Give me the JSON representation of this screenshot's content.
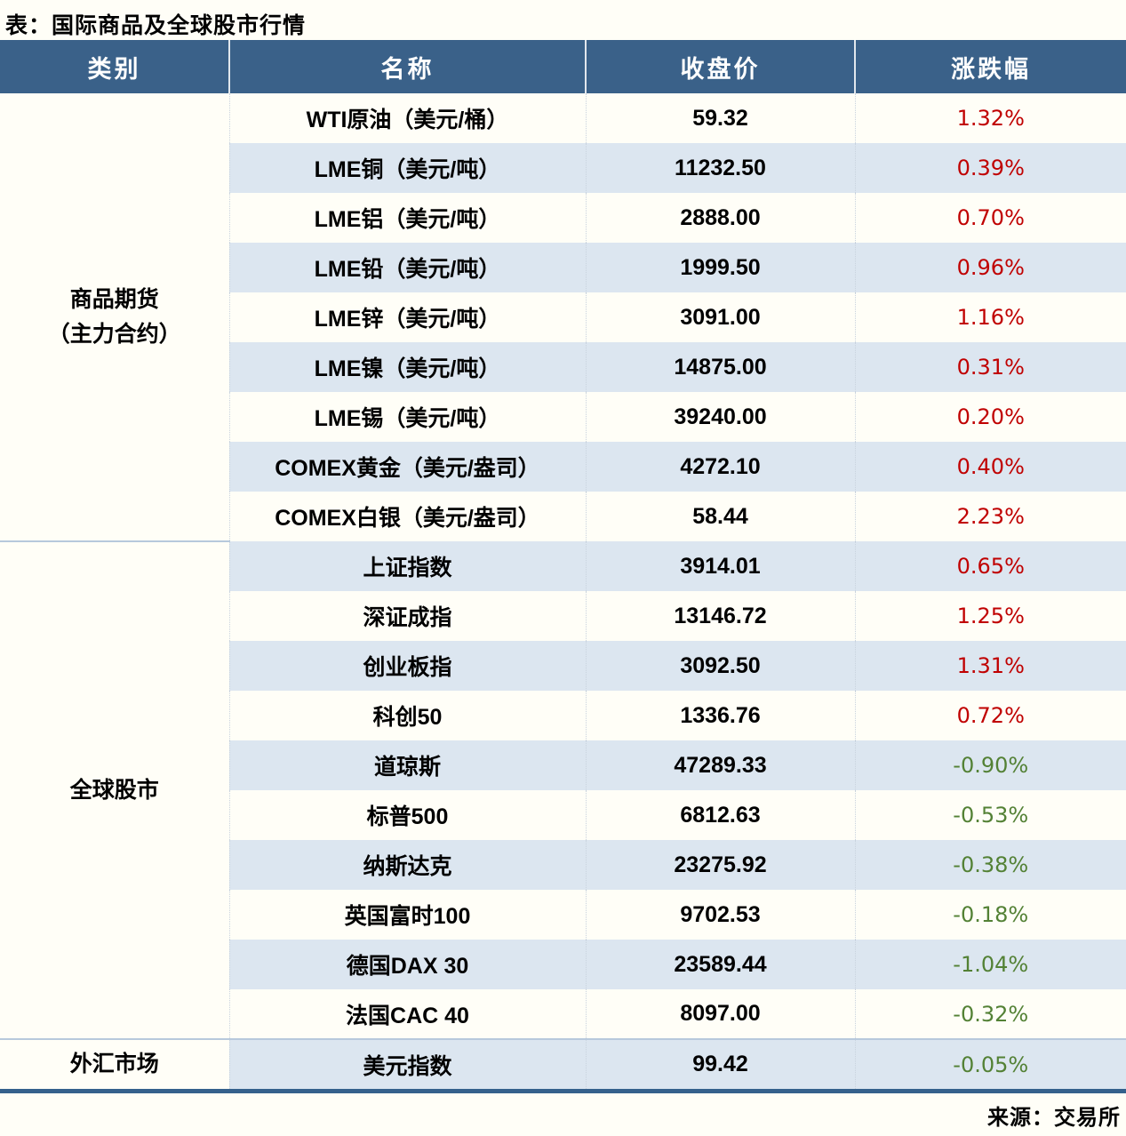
{
  "title": "表：国际商品及全球股市行情",
  "source": "来源：交易所",
  "columns": [
    "类别",
    "名称",
    "收盘价",
    "涨跌幅"
  ],
  "colors": {
    "header_bg": "#3a6189",
    "header_text": "#ffffff",
    "row_bg": "#fffef7",
    "row_alt_bg": "#dce6f0",
    "positive_change": "#c00000",
    "negative_change": "#538135",
    "group_divider": "#b7c9dc",
    "bottom_border": "#35618c"
  },
  "groups": [
    {
      "category_lines": [
        "商品期货",
        "（主力合约）"
      ],
      "rows": [
        {
          "name": "WTI原油（美元/桶）",
          "close": "59.32",
          "change": "1.32%",
          "direction": "up"
        },
        {
          "name": "LME铜（美元/吨）",
          "close": "11232.50",
          "change": "0.39%",
          "direction": "up"
        },
        {
          "name": "LME铝（美元/吨）",
          "close": "2888.00",
          "change": "0.70%",
          "direction": "up"
        },
        {
          "name": "LME铅（美元/吨）",
          "close": "1999.50",
          "change": "0.96%",
          "direction": "up"
        },
        {
          "name": "LME锌（美元/吨）",
          "close": "3091.00",
          "change": "1.16%",
          "direction": "up"
        },
        {
          "name": "LME镍（美元/吨）",
          "close": "14875.00",
          "change": "0.31%",
          "direction": "up"
        },
        {
          "name": "LME锡（美元/吨）",
          "close": "39240.00",
          "change": "0.20%",
          "direction": "up"
        },
        {
          "name": "COMEX黄金（美元/盎司）",
          "close": "4272.10",
          "change": "0.40%",
          "direction": "up"
        },
        {
          "name": "COMEX白银（美元/盎司）",
          "close": "58.44",
          "change": "2.23%",
          "direction": "up"
        }
      ]
    },
    {
      "category_lines": [
        "全球股市"
      ],
      "rows": [
        {
          "name": "上证指数",
          "close": "3914.01",
          "change": "0.65%",
          "direction": "up"
        },
        {
          "name": "深证成指",
          "close": "13146.72",
          "change": "1.25%",
          "direction": "up"
        },
        {
          "name": "创业板指",
          "close": "3092.50",
          "change": "1.31%",
          "direction": "up"
        },
        {
          "name": "科创50",
          "close": "1336.76",
          "change": "0.72%",
          "direction": "up"
        },
        {
          "name": "道琼斯",
          "close": "47289.33",
          "change": "-0.90%",
          "direction": "down"
        },
        {
          "name": "标普500",
          "close": "6812.63",
          "change": "-0.53%",
          "direction": "down"
        },
        {
          "name": "纳斯达克",
          "close": "23275.92",
          "change": "-0.38%",
          "direction": "down"
        },
        {
          "name": "英国富时100",
          "close": "9702.53",
          "change": "-0.18%",
          "direction": "down"
        },
        {
          "name": "德国DAX 30",
          "close": "23589.44",
          "change": "-1.04%",
          "direction": "down"
        },
        {
          "name": "法国CAC 40",
          "close": "8097.00",
          "change": "-0.32%",
          "direction": "down"
        }
      ]
    },
    {
      "category_lines": [
        "外汇市场"
      ],
      "rows": [
        {
          "name": "美元指数",
          "close": "99.42",
          "change": "-0.05%",
          "direction": "down"
        }
      ]
    }
  ],
  "chart_data": {
    "type": "table",
    "title": "表：国际商品及全球股市行情",
    "columns": [
      "类别",
      "名称",
      "收盘价",
      "涨跌幅"
    ],
    "rows": [
      [
        "商品期货（主力合约）",
        "WTI原油（美元/桶）",
        59.32,
        "1.32%"
      ],
      [
        "商品期货（主力合约）",
        "LME铜（美元/吨）",
        11232.5,
        "0.39%"
      ],
      [
        "商品期货（主力合约）",
        "LME铝（美元/吨）",
        2888.0,
        "0.70%"
      ],
      [
        "商品期货（主力合约）",
        "LME铅（美元/吨）",
        1999.5,
        "0.96%"
      ],
      [
        "商品期货（主力合约）",
        "LME锌（美元/吨）",
        3091.0,
        "1.16%"
      ],
      [
        "商品期货（主力合约）",
        "LME镍（美元/吨）",
        14875.0,
        "0.31%"
      ],
      [
        "商品期货（主力合约）",
        "LME锡（美元/吨）",
        39240.0,
        "0.20%"
      ],
      [
        "商品期货（主力合约）",
        "COMEX黄金（美元/盎司）",
        4272.1,
        "0.40%"
      ],
      [
        "商品期货（主力合约）",
        "COMEX白银（美元/盎司）",
        58.44,
        "2.23%"
      ],
      [
        "全球股市",
        "上证指数",
        3914.01,
        "0.65%"
      ],
      [
        "全球股市",
        "深证成指",
        13146.72,
        "1.25%"
      ],
      [
        "全球股市",
        "创业板指",
        3092.5,
        "1.31%"
      ],
      [
        "全球股市",
        "科创50",
        1336.76,
        "0.72%"
      ],
      [
        "全球股市",
        "道琼斯",
        47289.33,
        "-0.90%"
      ],
      [
        "全球股市",
        "标普500",
        6812.63,
        "-0.53%"
      ],
      [
        "全球股市",
        "纳斯达克",
        23275.92,
        "-0.38%"
      ],
      [
        "全球股市",
        "英国富时100",
        9702.53,
        "-0.18%"
      ],
      [
        "全球股市",
        "德国DAX 30",
        23589.44,
        "-1.04%"
      ],
      [
        "全球股市",
        "法国CAC 40",
        8097.0,
        "-0.32%"
      ],
      [
        "外汇市场",
        "美元指数",
        99.42,
        "-0.05%"
      ]
    ],
    "source": "来源：交易所",
    "legend_position": "none",
    "grid": "off"
  }
}
